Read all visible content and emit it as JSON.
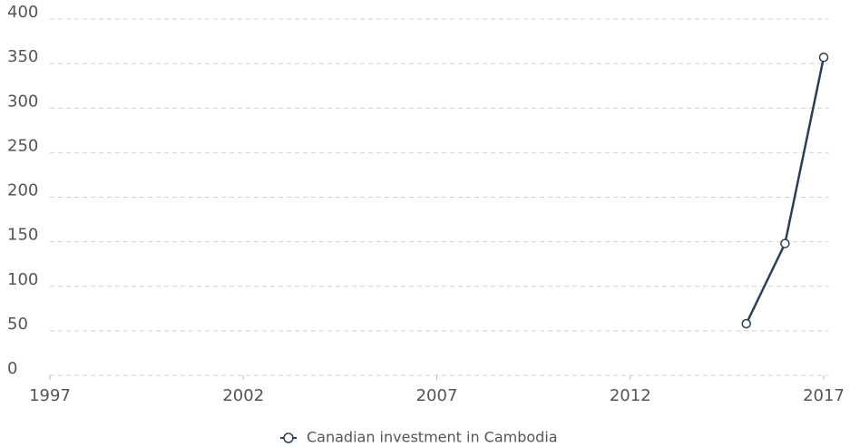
{
  "chart_data": {
    "type": "line",
    "x": [
      2015,
      2016,
      2017
    ],
    "series": [
      {
        "name": "Canadian investment in Cambodia",
        "color": "#2b3f5a",
        "values": [
          58,
          148,
          357
        ]
      }
    ],
    "xlim": [
      1997,
      2017
    ],
    "xticks": [
      1997,
      2002,
      2007,
      2012,
      2017
    ],
    "ylim": [
      0,
      400
    ],
    "yticks": [
      0,
      50,
      100,
      150,
      200,
      250,
      300,
      350,
      400
    ],
    "grid": true,
    "legend": "bottom"
  }
}
